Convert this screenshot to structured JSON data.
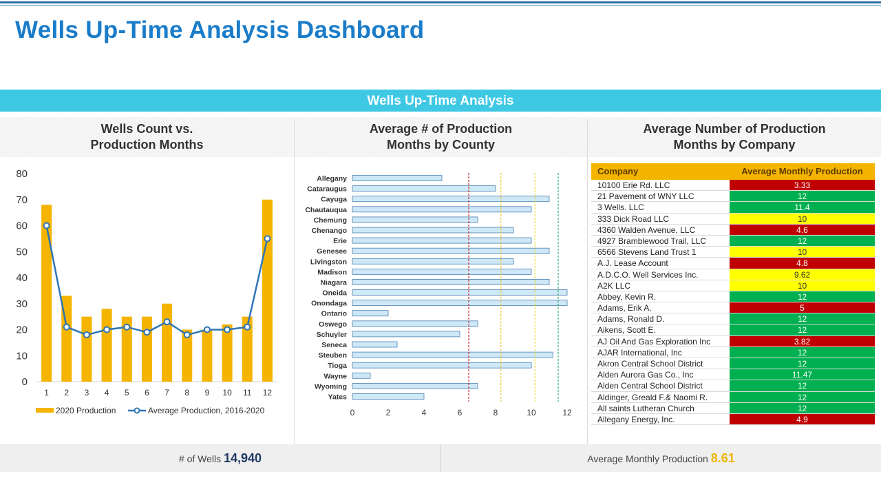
{
  "title": "Wells Up-Time Analysis Dashboard",
  "banner": "Wells Up-Time Analysis",
  "colors": {
    "title_blue": "#1a7cc9",
    "banner": "#3ec8e4",
    "bar_gold": "#f5b400",
    "line_blue": "#2e75b6",
    "hbar_fill": "#cfe8f7",
    "red": "#c00000",
    "green": "#00b050",
    "yellow": "#ffff00"
  },
  "panels": {
    "left_title_1": "Wells Count vs.",
    "left_title_2": "Production Months",
    "mid_title_1": "Average # of Production",
    "mid_title_2": "Months by County",
    "right_title_1": "Average Number of Production",
    "right_title_2": "Months by Company"
  },
  "chart_data": [
    {
      "type": "bar",
      "title": "Wells Count vs. Production Months",
      "categories": [
        "1",
        "2",
        "3",
        "4",
        "5",
        "6",
        "7",
        "8",
        "9",
        "10",
        "11",
        "12"
      ],
      "series": [
        {
          "name": "2020 Production",
          "type": "bar",
          "values": [
            68,
            33,
            25,
            28,
            25,
            25,
            30,
            20,
            20,
            22,
            25,
            70
          ]
        },
        {
          "name": "Average Production, 2016-2020",
          "type": "line",
          "values": [
            60,
            21,
            18,
            20,
            21,
            19,
            23,
            18,
            20,
            20,
            21,
            55
          ]
        }
      ],
      "ylim": [
        0,
        80
      ],
      "yticks": [
        0,
        10,
        20,
        30,
        40,
        50,
        60,
        70,
        80
      ],
      "legend": "bottom"
    },
    {
      "type": "bar",
      "orientation": "horizontal",
      "title": "Average # of Production Months by County",
      "categories": [
        "Allegany",
        "Cataraugus",
        "Cayuga",
        "Chautauqua",
        "Chemung",
        "Chenango",
        "Erie",
        "Genesee",
        "Livingston",
        "Madison",
        "Niagara",
        "Oneida",
        "Onondaga",
        "Ontario",
        "Oswego",
        "Schuyler",
        "Seneca",
        "Steuben",
        "Tioga",
        "Wayne",
        "Wyoming",
        "Yates"
      ],
      "values": [
        5,
        8,
        11,
        10,
        7,
        9,
        10,
        11,
        9,
        10,
        11,
        12,
        12,
        2,
        7,
        6,
        2.5,
        11.2,
        10,
        1,
        7,
        4
      ],
      "xlim": [
        0,
        12
      ],
      "xticks": [
        0,
        2,
        4,
        6,
        8,
        10,
        12
      ],
      "reference_lines": [
        {
          "value": 6.5,
          "color": "#c00000"
        },
        {
          "value": 8.3,
          "color": "#e6c200"
        },
        {
          "value": 10.2,
          "color": "#e6d800"
        },
        {
          "value": 11.5,
          "color": "#00a050"
        }
      ]
    },
    {
      "type": "table",
      "title": "Average Number of Production Months by Company",
      "columns": [
        "Company",
        "Average Monthly  Production"
      ],
      "rows": [
        {
          "company": "10100 Erie Rd. LLC",
          "value": "3.33",
          "status": "red"
        },
        {
          "company": "21 Pavement  of WNY LLC",
          "value": "12",
          "status": "green"
        },
        {
          "company": "3 Wells. LLC",
          "value": "11.4",
          "status": "green"
        },
        {
          "company": "333 Dick Road LLC",
          "value": "10",
          "status": "yellow"
        },
        {
          "company": "4360 Walden Avenue,  LLC",
          "value": "4.6",
          "status": "red"
        },
        {
          "company": "4927 Bramblewood  Trail, LLC",
          "value": "12",
          "status": "green"
        },
        {
          "company": "6566 Stevens Land Trust  1",
          "value": "10",
          "status": "yellow"
        },
        {
          "company": "A.J. Lease Account",
          "value": "4.8",
          "status": "red"
        },
        {
          "company": "A.D.C.O. Well Services Inc.",
          "value": "9.62",
          "status": "yellow"
        },
        {
          "company": "A2K LLC",
          "value": "10",
          "status": "yellow"
        },
        {
          "company": "Abbey, Kevin R.",
          "value": "12",
          "status": "green"
        },
        {
          "company": "Adams, Erik A.",
          "value": "5",
          "status": "red"
        },
        {
          "company": "Adams, Ronald D.",
          "value": "12",
          "status": "green"
        },
        {
          "company": "Aikens, Scott E.",
          "value": "12",
          "status": "green"
        },
        {
          "company": "AJ Oil And Gas Exploration Inc",
          "value": "3.82",
          "status": "red"
        },
        {
          "company": "AJAR International,  Inc",
          "value": "12",
          "status": "green"
        },
        {
          "company": "Akron Central  School District",
          "value": "12",
          "status": "green"
        },
        {
          "company": "Alden Aurora Gas Co., Inc",
          "value": "11.47",
          "status": "green"
        },
        {
          "company": "Alden Central  School District",
          "value": "12",
          "status": "green"
        },
        {
          "company": "Aldinger, Greald F.& Naomi R.",
          "value": "12",
          "status": "green"
        },
        {
          "company": "All saints Lutheran  Church",
          "value": "12",
          "status": "green"
        },
        {
          "company": "Allegany Energy, Inc.",
          "value": "4.9",
          "status": "red"
        }
      ]
    }
  ],
  "footer": {
    "wells_label": "# of Wells",
    "wells_value": "14,940",
    "avg_label": "Average Monthly  Production",
    "avg_value": "8.61"
  }
}
